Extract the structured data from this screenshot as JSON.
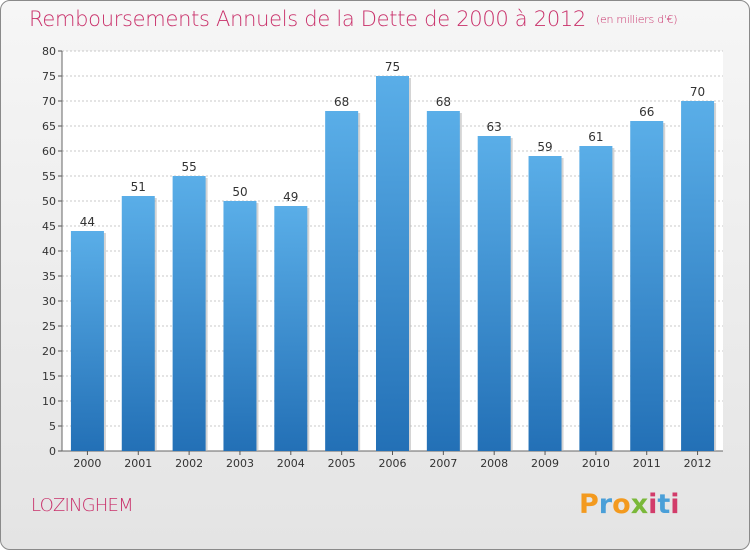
{
  "title": "Remboursements Annuels de la Dette de 2000 à 2012",
  "unit_note": "(en milliers d'€)",
  "footer": {
    "city": "LOZINGHEM",
    "logo": "Proxiti"
  },
  "colors": {
    "accent": "#c9306a",
    "bar_top": "#5aaee8",
    "bar_bottom": "#2370b6",
    "grid": "#c8c8c8"
  },
  "chart_data": {
    "type": "bar",
    "categories": [
      "2000",
      "2001",
      "2002",
      "2003",
      "2004",
      "2005",
      "2006",
      "2007",
      "2008",
      "2009",
      "2010",
      "2011",
      "2012"
    ],
    "values": [
      44,
      51,
      55,
      50,
      49,
      68,
      75,
      68,
      63,
      59,
      61,
      66,
      70
    ],
    "ylim": [
      0,
      80
    ],
    "yticks": [
      0,
      5,
      10,
      15,
      20,
      25,
      30,
      35,
      40,
      45,
      50,
      55,
      60,
      65,
      70,
      75,
      80
    ],
    "grid": true,
    "xlabel": "",
    "ylabel": ""
  }
}
